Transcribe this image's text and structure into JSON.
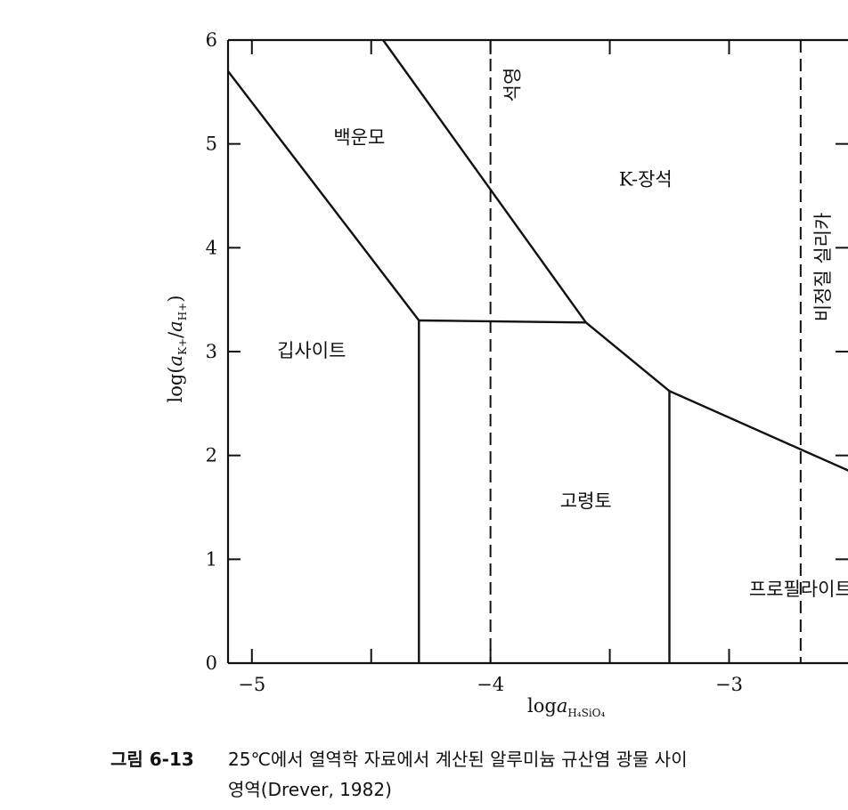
{
  "chart_data": {
    "type": "phase-diagram",
    "xlabel": "log a_H4SiO4",
    "ylabel": "log(a_K+/a_H+)",
    "xlim": [
      -5.1,
      -2.3
    ],
    "ylim": [
      0,
      6
    ],
    "xticks": [
      -5,
      -4,
      -3
    ],
    "xtick_labels": [
      "−5",
      "−4",
      "−3"
    ],
    "yticks": [
      0,
      1,
      2,
      3,
      4,
      5,
      6
    ],
    "ytick_labels": [
      "0",
      "1",
      "2",
      "3",
      "4",
      "5",
      "6"
    ],
    "boundaries": [
      {
        "name": "gibbsite-muscovite",
        "points": [
          [
            -5.1,
            5.7
          ],
          [
            -4.3,
            3.3
          ]
        ]
      },
      {
        "name": "gibbsite-kaolinite",
        "points": [
          [
            -4.3,
            3.3
          ],
          [
            -4.3,
            0
          ]
        ]
      },
      {
        "name": "muscovite-kaolinite",
        "points": [
          [
            -4.3,
            3.3
          ],
          [
            -3.6,
            3.28
          ]
        ]
      },
      {
        "name": "muscovite-kfeldspar",
        "points": [
          [
            -4.45,
            6.0
          ],
          [
            -3.6,
            3.28
          ]
        ]
      },
      {
        "name": "kaolinite-kfeldspar",
        "points": [
          [
            -3.6,
            3.28
          ],
          [
            -3.25,
            2.62
          ]
        ]
      },
      {
        "name": "kaolinite-pyrophyllite",
        "points": [
          [
            -3.25,
            2.62
          ],
          [
            -3.25,
            0
          ]
        ]
      },
      {
        "name": "pyrophyllite-kfeldspar",
        "points": [
          [
            -3.25,
            2.62
          ],
          [
            -2.3,
            1.65
          ]
        ]
      }
    ],
    "saturation_lines": [
      {
        "label": "석영",
        "x": -4.0
      },
      {
        "label": "비정질 실리카",
        "x": -2.7
      }
    ],
    "regions": [
      {
        "label": "백운모",
        "x": -4.55,
        "y": 5.0
      },
      {
        "label": "K-장석",
        "x": -3.35,
        "y": 4.6
      },
      {
        "label": "깁사이트",
        "x": -4.75,
        "y": 2.95
      },
      {
        "label": "고령토",
        "x": -3.6,
        "y": 1.5
      },
      {
        "label": "프로필라이트",
        "x": -2.7,
        "y": 0.65
      }
    ]
  },
  "caption": {
    "number": "그림 6-13",
    "line1": "25℃에서 열역학 자료에서 계산된 알루미늄 규산염 광물 사이",
    "line2": "영역(Drever, 1982)"
  }
}
